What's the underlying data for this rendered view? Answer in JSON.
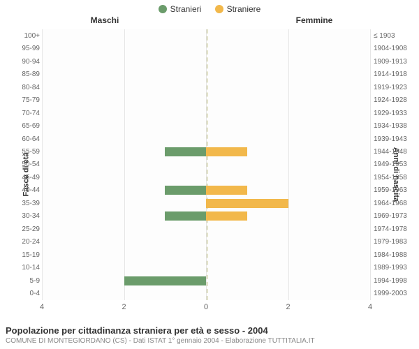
{
  "legend": {
    "male": {
      "label": "Stranieri",
      "color": "#6b9c6b"
    },
    "female": {
      "label": "Straniere",
      "color": "#f2b84b"
    }
  },
  "headers": {
    "left": "Maschi",
    "right": "Femmine"
  },
  "axis_titles": {
    "left": "Fasce di età",
    "right": "Anni di nascita"
  },
  "chart": {
    "type": "population-pyramid",
    "xlim": [
      -4,
      4
    ],
    "xticks": [
      -4,
      -2,
      0,
      2,
      4
    ],
    "xtick_labels": [
      "4",
      "2",
      "0",
      "2",
      "4"
    ],
    "male_color": "#6b9c6b",
    "female_color": "#f2b84b",
    "background_color": "#ffffff",
    "grid_color": "#e6e6e6",
    "zero_line_color": "#7a7a00",
    "rows": [
      {
        "age": "100+",
        "birth": "≤ 1903",
        "male": 0,
        "female": 0
      },
      {
        "age": "95-99",
        "birth": "1904-1908",
        "male": 0,
        "female": 0
      },
      {
        "age": "90-94",
        "birth": "1909-1913",
        "male": 0,
        "female": 0
      },
      {
        "age": "85-89",
        "birth": "1914-1918",
        "male": 0,
        "female": 0
      },
      {
        "age": "80-84",
        "birth": "1919-1923",
        "male": 0,
        "female": 0
      },
      {
        "age": "75-79",
        "birth": "1924-1928",
        "male": 0,
        "female": 0
      },
      {
        "age": "70-74",
        "birth": "1929-1933",
        "male": 0,
        "female": 0
      },
      {
        "age": "65-69",
        "birth": "1934-1938",
        "male": 0,
        "female": 0
      },
      {
        "age": "60-64",
        "birth": "1939-1943",
        "male": 0,
        "female": 0
      },
      {
        "age": "55-59",
        "birth": "1944-1948",
        "male": 1,
        "female": 1
      },
      {
        "age": "50-54",
        "birth": "1949-1953",
        "male": 0,
        "female": 0
      },
      {
        "age": "45-49",
        "birth": "1954-1958",
        "male": 0,
        "female": 0
      },
      {
        "age": "40-44",
        "birth": "1959-1963",
        "male": 1,
        "female": 1
      },
      {
        "age": "35-39",
        "birth": "1964-1968",
        "male": 0,
        "female": 2
      },
      {
        "age": "30-34",
        "birth": "1969-1973",
        "male": 1,
        "female": 1
      },
      {
        "age": "25-29",
        "birth": "1974-1978",
        "male": 0,
        "female": 0
      },
      {
        "age": "20-24",
        "birth": "1979-1983",
        "male": 0,
        "female": 0
      },
      {
        "age": "15-19",
        "birth": "1984-1988",
        "male": 0,
        "female": 0
      },
      {
        "age": "10-14",
        "birth": "1989-1993",
        "male": 0,
        "female": 0
      },
      {
        "age": "5-9",
        "birth": "1994-1998",
        "male": 2,
        "female": 0
      },
      {
        "age": "0-4",
        "birth": "1999-2003",
        "male": 0,
        "female": 0
      }
    ]
  },
  "footer": {
    "title": "Popolazione per cittadinanza straniera per età e sesso - 2004",
    "subtitle": "COMUNE DI MONTEGIORDANO (CS) - Dati ISTAT 1° gennaio 2004 - Elaborazione TUTTITALIA.IT"
  }
}
